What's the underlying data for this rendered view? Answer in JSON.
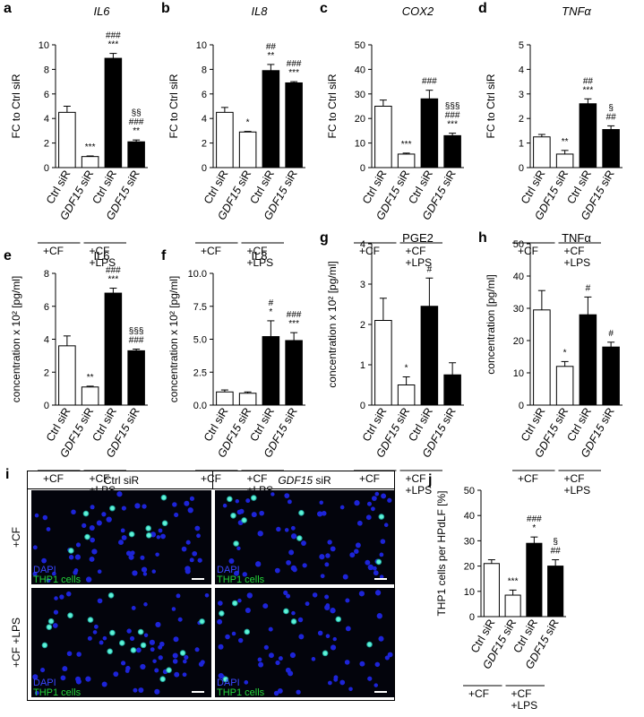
{
  "chart_data": [
    {
      "type": "bar",
      "letter": "a",
      "title": "IL6",
      "title_italic": true,
      "ylabel": "FC to Ctrl siR",
      "categories": [
        "Ctrl siR",
        "GDF15 siR",
        "Ctrl siR",
        "GDF15 siR"
      ],
      "italic_first_word": [
        false,
        true,
        false,
        true
      ],
      "values": [
        4.5,
        0.9,
        8.9,
        2.1
      ],
      "errors": [
        0.5,
        0.05,
        0.4,
        0.15
      ],
      "colors": [
        "#ffffff",
        "#ffffff",
        "#000000",
        "#000000"
      ],
      "annotations": [
        [],
        [
          "***"
        ],
        [
          "###",
          "***"
        ],
        [
          "§§",
          "###",
          "**"
        ]
      ],
      "groups": [
        "+CF",
        "+CF\n+LPS"
      ],
      "ylim": [
        0,
        10
      ],
      "yticks": [
        0,
        2,
        4,
        6,
        8,
        10
      ]
    },
    {
      "type": "bar",
      "letter": "b",
      "title": "IL8",
      "title_italic": true,
      "ylabel": "FC to Ctrl siR",
      "categories": [
        "Ctrl siR",
        "GDF15 siR",
        "Ctrl siR",
        "GDF15 siR"
      ],
      "italic_first_word": [
        false,
        true,
        false,
        true
      ],
      "values": [
        4.5,
        2.9,
        7.9,
        6.9
      ],
      "errors": [
        0.4,
        0.05,
        0.5,
        0.1
      ],
      "colors": [
        "#ffffff",
        "#ffffff",
        "#000000",
        "#000000"
      ],
      "annotations": [
        [],
        [
          "*"
        ],
        [
          "##",
          "**"
        ],
        [
          "###",
          "***"
        ]
      ],
      "groups": [
        "+CF",
        "+CF\n+LPS"
      ],
      "ylim": [
        0,
        10
      ],
      "yticks": [
        0,
        2,
        4,
        6,
        8,
        10
      ]
    },
    {
      "type": "bar",
      "letter": "c",
      "title": "COX2",
      "title_italic": true,
      "ylabel": "FC to Ctrl siR",
      "categories": [
        "Ctrl siR",
        "GDF15 siR",
        "Ctrl siR",
        "GDF15 siR"
      ],
      "italic_first_word": [
        false,
        true,
        false,
        true
      ],
      "values": [
        25,
        5.5,
        28,
        13
      ],
      "errors": [
        2.5,
        0.4,
        3.5,
        1
      ],
      "colors": [
        "#ffffff",
        "#ffffff",
        "#000000",
        "#000000"
      ],
      "annotations": [
        [],
        [
          "***"
        ],
        [
          "###"
        ],
        [
          "§§§",
          "###",
          "***"
        ]
      ],
      "groups": [
        "+CF",
        "+CF\n+LPS"
      ],
      "ylim": [
        0,
        50
      ],
      "yticks": [
        0,
        10,
        20,
        30,
        40,
        50
      ]
    },
    {
      "type": "bar",
      "letter": "d",
      "title": "TNFα",
      "title_italic": true,
      "ylabel": "FC to Ctrl siR",
      "categories": [
        "Ctrl siR",
        "GDF15 siR",
        "Ctrl siR",
        "GDF15 siR"
      ],
      "italic_first_word": [
        false,
        true,
        false,
        true
      ],
      "values": [
        1.25,
        0.55,
        2.6,
        1.55
      ],
      "errors": [
        0.1,
        0.15,
        0.2,
        0.15
      ],
      "colors": [
        "#ffffff",
        "#ffffff",
        "#000000",
        "#000000"
      ],
      "annotations": [
        [],
        [
          "**"
        ],
        [
          "##",
          "***"
        ],
        [
          "§",
          "##"
        ]
      ],
      "groups": [
        "+CF",
        "+CF\n+LPS"
      ],
      "ylim": [
        0,
        5
      ],
      "yticks": [
        0,
        1,
        2,
        3,
        4,
        5
      ]
    },
    {
      "type": "bar",
      "letter": "e",
      "title": "IL6",
      "title_italic": false,
      "ylabel": "concentration x 10² [pg/ml]",
      "categories": [
        "Ctrl siR",
        "GDF15 siR",
        "Ctrl siR",
        "GDF15 siR"
      ],
      "italic_first_word": [
        false,
        true,
        false,
        true
      ],
      "values": [
        3.6,
        1.1,
        6.8,
        3.3
      ],
      "errors": [
        0.6,
        0.05,
        0.3,
        0.1
      ],
      "colors": [
        "#ffffff",
        "#ffffff",
        "#000000",
        "#000000"
      ],
      "annotations": [
        [],
        [
          "**"
        ],
        [
          "###",
          "***"
        ],
        [
          "§§§",
          "###"
        ]
      ],
      "groups": [
        "+CF",
        "+CF\n+LPS"
      ],
      "ylim": [
        0,
        8
      ],
      "yticks": [
        0,
        2,
        4,
        6,
        8
      ]
    },
    {
      "type": "bar",
      "letter": "f",
      "title": "IL8",
      "title_italic": false,
      "ylabel": "concentration x 10² [pg/ml]",
      "categories": [
        "Ctrl siR",
        "GDF15 siR",
        "Ctrl siR",
        "GDF15 siR"
      ],
      "italic_first_word": [
        false,
        true,
        false,
        true
      ],
      "values": [
        1.0,
        0.9,
        5.2,
        4.9
      ],
      "errors": [
        0.15,
        0.1,
        1.2,
        0.6
      ],
      "colors": [
        "#ffffff",
        "#ffffff",
        "#000000",
        "#000000"
      ],
      "annotations": [
        [],
        [],
        [
          "#",
          "*"
        ],
        [
          "###",
          "***"
        ]
      ],
      "groups": [
        "+CF",
        "+CF\n+LPS"
      ],
      "ylim": [
        0,
        10
      ],
      "yticks": [
        {
          "value": 0,
          "label": "0.0"
        },
        {
          "value": 2.5,
          "label": "2.5"
        },
        {
          "value": 5,
          "label": "5.0"
        },
        {
          "value": 7.5,
          "label": "7.5"
        },
        {
          "value": 10,
          "label": "10.0"
        }
      ]
    },
    {
      "type": "bar",
      "letter": "g",
      "title": "PGE2",
      "title_italic": false,
      "ylabel": "concentration x 10² [pg/ml]",
      "categories": [
        "Ctrl siR",
        "GDF15 siR",
        "Ctrl siR",
        "GDF15 siR"
      ],
      "italic_first_word": [
        false,
        true,
        false,
        true
      ],
      "values": [
        2.1,
        0.5,
        2.45,
        0.75
      ],
      "errors": [
        0.55,
        0.2,
        0.7,
        0.3
      ],
      "colors": [
        "#ffffff",
        "#ffffff",
        "#000000",
        "#000000"
      ],
      "annotations": [
        [],
        [
          "*"
        ],
        [
          "#"
        ],
        []
      ],
      "groups": [
        "+CF",
        "+CF\n+LPS"
      ],
      "ylim": [
        0,
        4
      ],
      "yticks": [
        0,
        1,
        2,
        3,
        4
      ]
    },
    {
      "type": "bar",
      "letter": "h",
      "title": "TNFα",
      "title_italic": false,
      "ylabel": "concentration [pg/ml]",
      "categories": [
        "Ctrl siR",
        "GDF15 siR",
        "Ctrl siR",
        "GDF15 siR"
      ],
      "italic_first_word": [
        false,
        true,
        false,
        true
      ],
      "values": [
        29.5,
        12,
        28,
        18
      ],
      "errors": [
        6,
        1.5,
        5.5,
        1.5
      ],
      "colors": [
        "#ffffff",
        "#ffffff",
        "#000000",
        "#000000"
      ],
      "annotations": [
        [],
        [
          "*"
        ],
        [
          "#"
        ],
        [
          "#"
        ]
      ],
      "groups": [
        "+CF",
        "+CF\n+LPS"
      ],
      "ylim": [
        0,
        50
      ],
      "yticks": [
        0,
        10,
        20,
        30,
        40,
        50
      ]
    },
    {
      "type": "bar",
      "letter": "j",
      "ylabel": "THP1 cells per HPdLF [%]",
      "categories": [
        "Ctrl siR",
        "GDF15 siR",
        "Ctrl siR",
        "GDF15 siR"
      ],
      "italic_first_word": [
        false,
        true,
        false,
        true
      ],
      "values": [
        21,
        8.5,
        29,
        20
      ],
      "errors": [
        1.5,
        2,
        2.5,
        2.5
      ],
      "colors": [
        "#ffffff",
        "#ffffff",
        "#000000",
        "#000000"
      ],
      "annotations": [
        [],
        [
          "***"
        ],
        [
          "###",
          "*"
        ],
        [
          "§",
          "##"
        ]
      ],
      "groups": [
        "+CF",
        "+CF\n+LPS"
      ],
      "ylim": [
        0,
        50
      ],
      "yticks": [
        0,
        10,
        20,
        30,
        40,
        50
      ]
    }
  ],
  "image_panel": {
    "letter": "i",
    "columns": [
      "Ctrl siR",
      "GDF15 siR"
    ],
    "columns_italic_first_word": [
      false,
      true
    ],
    "rows": [
      "+CF",
      "+CF +LPS"
    ],
    "stain_labels": [
      "DAPI",
      "THP1 cells"
    ]
  }
}
